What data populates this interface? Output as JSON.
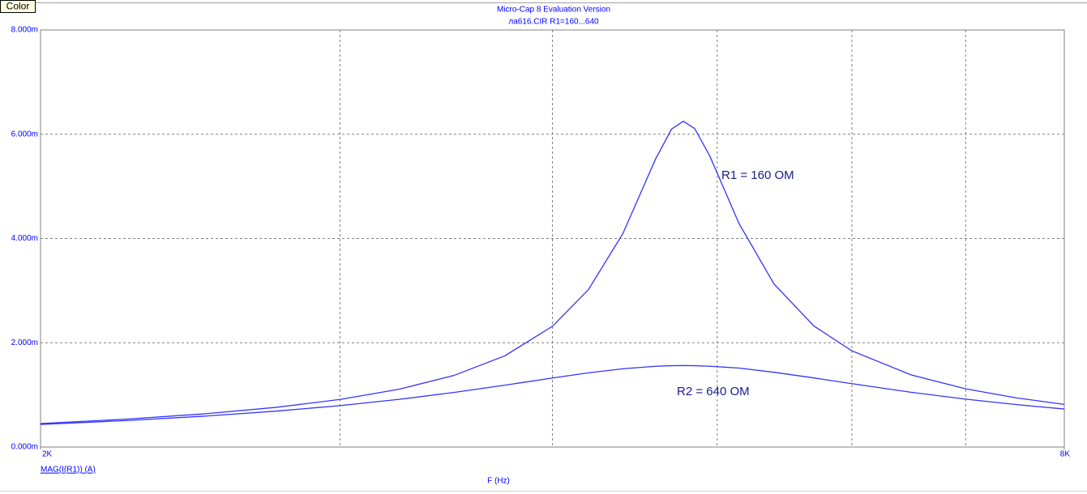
{
  "toolbar": {
    "button": "Color"
  },
  "chart_data": {
    "type": "line",
    "title": "Micro-Cap 8 Evaluation Version",
    "subtitle": "ла616.CIR R1=160...640",
    "x_label": "F (Hz)",
    "y_label": "MAG(I(R1)) (A)",
    "xscale": "log",
    "xlim": [
      2000,
      8000
    ],
    "xticks": [
      {
        "value": 2000,
        "label": "2K"
      },
      {
        "value": 8000,
        "label": "8K"
      }
    ],
    "xgrid": [
      3000,
      4000,
      5000,
      6000,
      7000
    ],
    "ylim": [
      0,
      0.008
    ],
    "yticks": [
      {
        "value": 0,
        "label": "0.000m"
      },
      {
        "value": 0.002,
        "label": "2.000m"
      },
      {
        "value": 0.004,
        "label": "4.000m"
      },
      {
        "value": 0.006,
        "label": "6.000m"
      },
      {
        "value": 0.008,
        "label": "8.000m"
      }
    ],
    "grid": true,
    "x": [
      2000,
      2250,
      2500,
      2750,
      3000,
      3250,
      3500,
      3750,
      4000,
      4200,
      4400,
      4600,
      4700,
      4776,
      4850,
      4950,
      5150,
      5400,
      5700,
      6000,
      6500,
      7000,
      7500,
      8000
    ],
    "series": [
      {
        "name": "R1 = 160 OM",
        "color": "#3333ff",
        "values": [
          0.00045,
          0.000536,
          0.000638,
          0.00076,
          0.000912,
          0.001108,
          0.001372,
          0.001748,
          0.002316,
          0.003019,
          0.004092,
          0.005527,
          0.006097,
          0.00625,
          0.006108,
          0.005583,
          0.004286,
          0.003126,
          0.002321,
          0.001845,
          0.001384,
          0.001116,
          0.000942,
          0.000818
        ]
      },
      {
        "name": "R2 = 640 OM",
        "color": "#3333ff",
        "values": [
          0.000434,
          0.000509,
          0.000593,
          0.000688,
          0.000794,
          0.000914,
          0.001046,
          0.001186,
          0.001324,
          0.001423,
          0.001501,
          0.001549,
          0.00156,
          0.0015625,
          0.00156,
          0.00155,
          0.001515,
          0.001434,
          0.001325,
          0.001215,
          0.001051,
          0.000918,
          0.000813,
          0.000729
        ]
      }
    ]
  }
}
